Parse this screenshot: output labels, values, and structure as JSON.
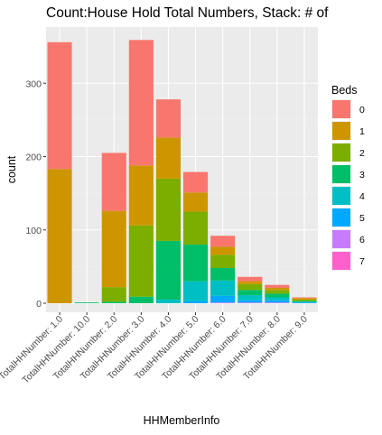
{
  "chart_data": {
    "type": "bar",
    "stacked": true,
    "title": "Count:House Hold Total Numbers, Stack: # of",
    "xlabel": "HHMemberInfo",
    "ylabel": "count",
    "ylim": [
      0,
      375
    ],
    "yticks": [
      0,
      100,
      200,
      300
    ],
    "grid": true,
    "legend_position": "right",
    "legend_title": "Beds",
    "categories": [
      "TotalHHNumber: 1.0",
      "TotalHHNumber: 10.0",
      "TotalHHNumber: 2.0",
      "TotalHHNumber: 3.0",
      "TotalHHNumber: 4.0",
      "TotalHHNumber: 5.0",
      "TotalHHNumber: 6.0",
      "TotalHHNumber: 7.0",
      "TotalHHNumber: 8.0",
      "TotalHHNumber: 9.0"
    ],
    "series": [
      {
        "name": "0",
        "color": "#F8766D",
        "values": [
          173,
          0,
          79,
          171,
          52,
          28,
          15,
          6,
          4,
          1
        ]
      },
      {
        "name": "1",
        "color": "#CD9600",
        "values": [
          183,
          0,
          104,
          82,
          56,
          26,
          11,
          4,
          3,
          2
        ]
      },
      {
        "name": "2",
        "color": "#7CAE00",
        "values": [
          0,
          0,
          20,
          97,
          85,
          45,
          18,
          8,
          5,
          2
        ]
      },
      {
        "name": "3",
        "color": "#00BE67",
        "values": [
          0,
          1,
          2,
          9,
          80,
          50,
          17,
          7,
          5,
          1
        ]
      },
      {
        "name": "4",
        "color": "#00BFC4",
        "values": [
          0,
          0,
          0,
          0,
          5,
          27,
          21,
          7,
          4,
          1
        ]
      },
      {
        "name": "5",
        "color": "#00A9FF",
        "values": [
          0,
          0,
          0,
          0,
          0,
          3,
          9,
          3,
          3,
          1
        ]
      },
      {
        "name": "6",
        "color": "#C77CFF",
        "values": [
          0,
          0,
          0,
          0,
          0,
          0,
          1,
          1,
          1,
          0
        ]
      },
      {
        "name": "7",
        "color": "#FF61CC",
        "values": [
          0,
          0,
          0,
          0,
          0,
          0,
          0,
          0,
          0,
          0
        ]
      }
    ]
  },
  "colors": {
    "panel_background": "#EBEBEB",
    "grid_major": "#FFFFFF",
    "grid_minor": "#F2F2F2",
    "axis_text": "#4D4D4D"
  }
}
